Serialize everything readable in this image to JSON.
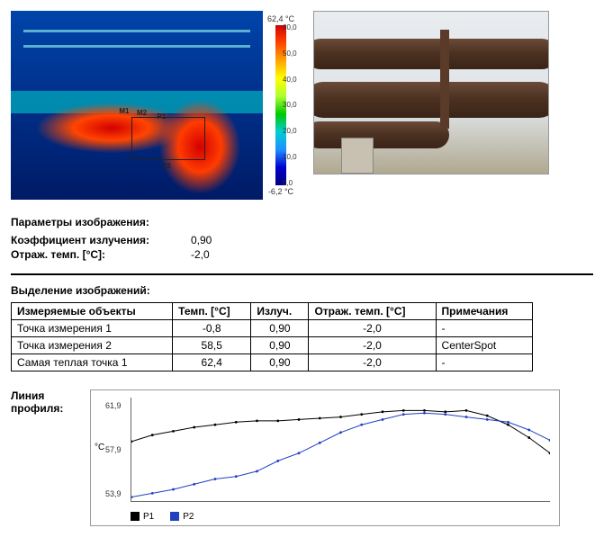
{
  "scale": {
    "max": "62,4 °C",
    "min": "-6,2 °C",
    "ticks": [
      "60,0",
      "50,0",
      "40,0",
      "30,0",
      "20,0",
      "10,0",
      "0,0"
    ]
  },
  "thermal": {
    "m1": "M1",
    "m2": "M2",
    "p1": "P1",
    "p2": "P2"
  },
  "params": {
    "title": "Параметры изображения:",
    "emissLabel": "Коэффициент излучения:",
    "emissVal": "0,90",
    "reflLabel": "Отраж. темп. [°C]:",
    "reflVal": "-2,0"
  },
  "tableTitle": "Выделение изображений:",
  "cols": {
    "c1": "Измеряемые объекты",
    "c2": "Темп. [°C]",
    "c3": "Излуч.",
    "c4": "Отраж. темп. [°C]",
    "c5": "Примечания"
  },
  "rows": [
    {
      "a": "Точка измерения 1",
      "b": "-0,8",
      "c": "0,90",
      "d": "-2,0",
      "e": "-"
    },
    {
      "a": "Точка измерения 2",
      "b": "58,5",
      "c": "0,90",
      "d": "-2,0",
      "e": "CenterSpot"
    },
    {
      "a": "Самая теплая точка 1",
      "b": "62,4",
      "c": "0,90",
      "d": "-2,0",
      "e": "-"
    }
  ],
  "chart": {
    "title": "Линия\nпрофиля:",
    "yUnit": "°C",
    "yticks": [
      {
        "v": "61,9",
        "p": 8
      },
      {
        "v": "57,9",
        "p": 50
      },
      {
        "v": "53,9",
        "p": 92
      }
    ],
    "legend": {
      "p1": {
        "label": "P1",
        "color": "#000000"
      },
      "p2": {
        "label": "P2",
        "color": "#2040c0"
      }
    },
    "p1": {
      "color": "#000000",
      "points": [
        [
          0,
          58.5
        ],
        [
          5,
          59.0
        ],
        [
          10,
          59.3
        ],
        [
          15,
          59.6
        ],
        [
          20,
          59.8
        ],
        [
          25,
          60.0
        ],
        [
          30,
          60.1
        ],
        [
          35,
          60.1
        ],
        [
          40,
          60.2
        ],
        [
          45,
          60.3
        ],
        [
          50,
          60.4
        ],
        [
          55,
          60.6
        ],
        [
          60,
          60.8
        ],
        [
          65,
          60.9
        ],
        [
          70,
          60.9
        ],
        [
          75,
          60.8
        ],
        [
          80,
          60.9
        ],
        [
          85,
          60.5
        ],
        [
          90,
          59.8
        ],
        [
          95,
          58.8
        ],
        [
          100,
          57.6
        ]
      ]
    },
    "p2": {
      "color": "#2040c0",
      "points": [
        [
          0,
          54.2
        ],
        [
          5,
          54.5
        ],
        [
          10,
          54.8
        ],
        [
          15,
          55.2
        ],
        [
          20,
          55.6
        ],
        [
          25,
          55.8
        ],
        [
          30,
          56.2
        ],
        [
          35,
          57.0
        ],
        [
          40,
          57.6
        ],
        [
          45,
          58.4
        ],
        [
          50,
          59.2
        ],
        [
          55,
          59.8
        ],
        [
          60,
          60.2
        ],
        [
          65,
          60.6
        ],
        [
          70,
          60.7
        ],
        [
          75,
          60.6
        ],
        [
          80,
          60.4
        ],
        [
          85,
          60.2
        ],
        [
          90,
          60.0
        ],
        [
          95,
          59.4
        ],
        [
          100,
          58.6
        ]
      ]
    },
    "ylim": [
      53.9,
      61.9
    ]
  }
}
